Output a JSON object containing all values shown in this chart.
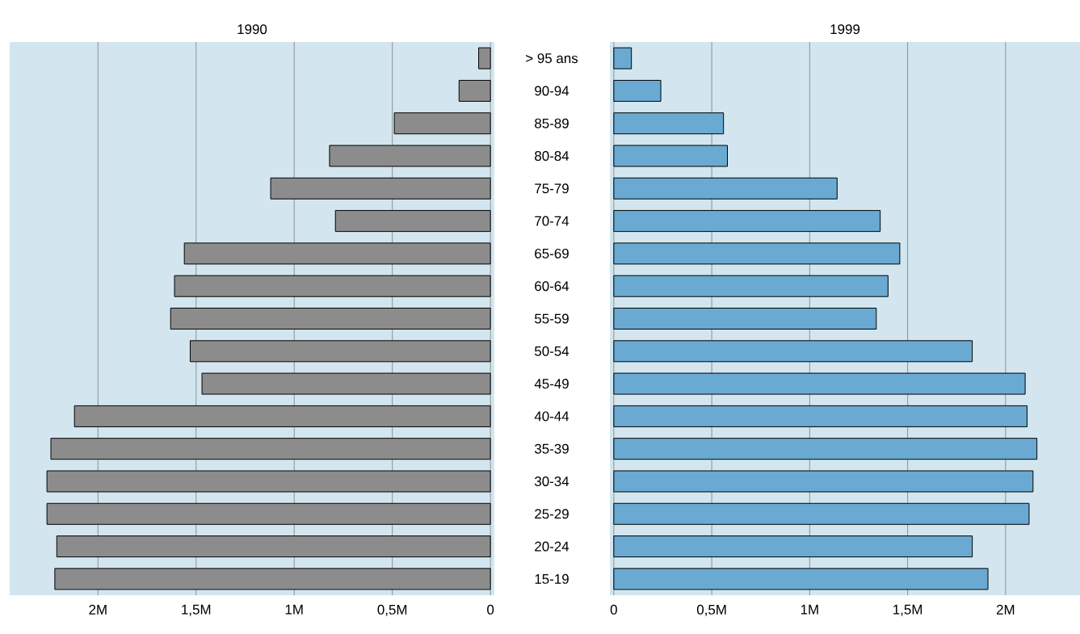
{
  "chart_data": [
    {
      "type": "bar",
      "orientation": "horizontal",
      "title": "1990",
      "grid": "x",
      "categories": [
        "> 95 ans",
        "90-94",
        "85-89",
        "80-84",
        "75-79",
        "70-74",
        "65-69",
        "60-64",
        "55-59",
        "50-54",
        "45-49",
        "40-44",
        "35-39",
        "30-34",
        "25-29",
        "20-24",
        "15-19"
      ],
      "values": [
        0.06,
        0.16,
        0.49,
        0.82,
        1.12,
        0.79,
        1.56,
        1.61,
        1.63,
        1.53,
        1.47,
        2.12,
        2.24,
        2.26,
        2.26,
        2.21,
        2.22
      ],
      "color": "#8c8c8c",
      "xlim": [
        2.45,
        -0.02
      ],
      "xticks": [
        {
          "value": 2,
          "label": "2M"
        },
        {
          "value": 1.5,
          "label": "1,5M"
        },
        {
          "value": 1,
          "label": "1M"
        },
        {
          "value": 0.5,
          "label": "0,5M"
        },
        0
      ]
    },
    {
      "type": "bar",
      "orientation": "horizontal",
      "title": "1999",
      "grid": "x",
      "tick_labels": "x",
      "categories": [
        null,
        null,
        null,
        null,
        null,
        null,
        null,
        null,
        null,
        null,
        null,
        null,
        null,
        null,
        null,
        null,
        null
      ],
      "values": [
        0.09,
        0.24,
        0.56,
        0.58,
        1.14,
        1.36,
        1.46,
        1.4,
        1.34,
        1.83,
        2.1,
        2.11,
        2.16,
        2.14,
        2.12,
        1.83,
        1.91
      ],
      "color": "#6aa9d2",
      "xlim": [
        -0.02,
        2.38
      ],
      "xticks": [
        0,
        {
          "value": 0.5,
          "label": "0,5M"
        },
        {
          "value": 1,
          "label": "1M"
        },
        {
          "value": 1.5,
          "label": "1,5M"
        },
        {
          "value": 2,
          "label": "2M"
        }
      ]
    }
  ]
}
